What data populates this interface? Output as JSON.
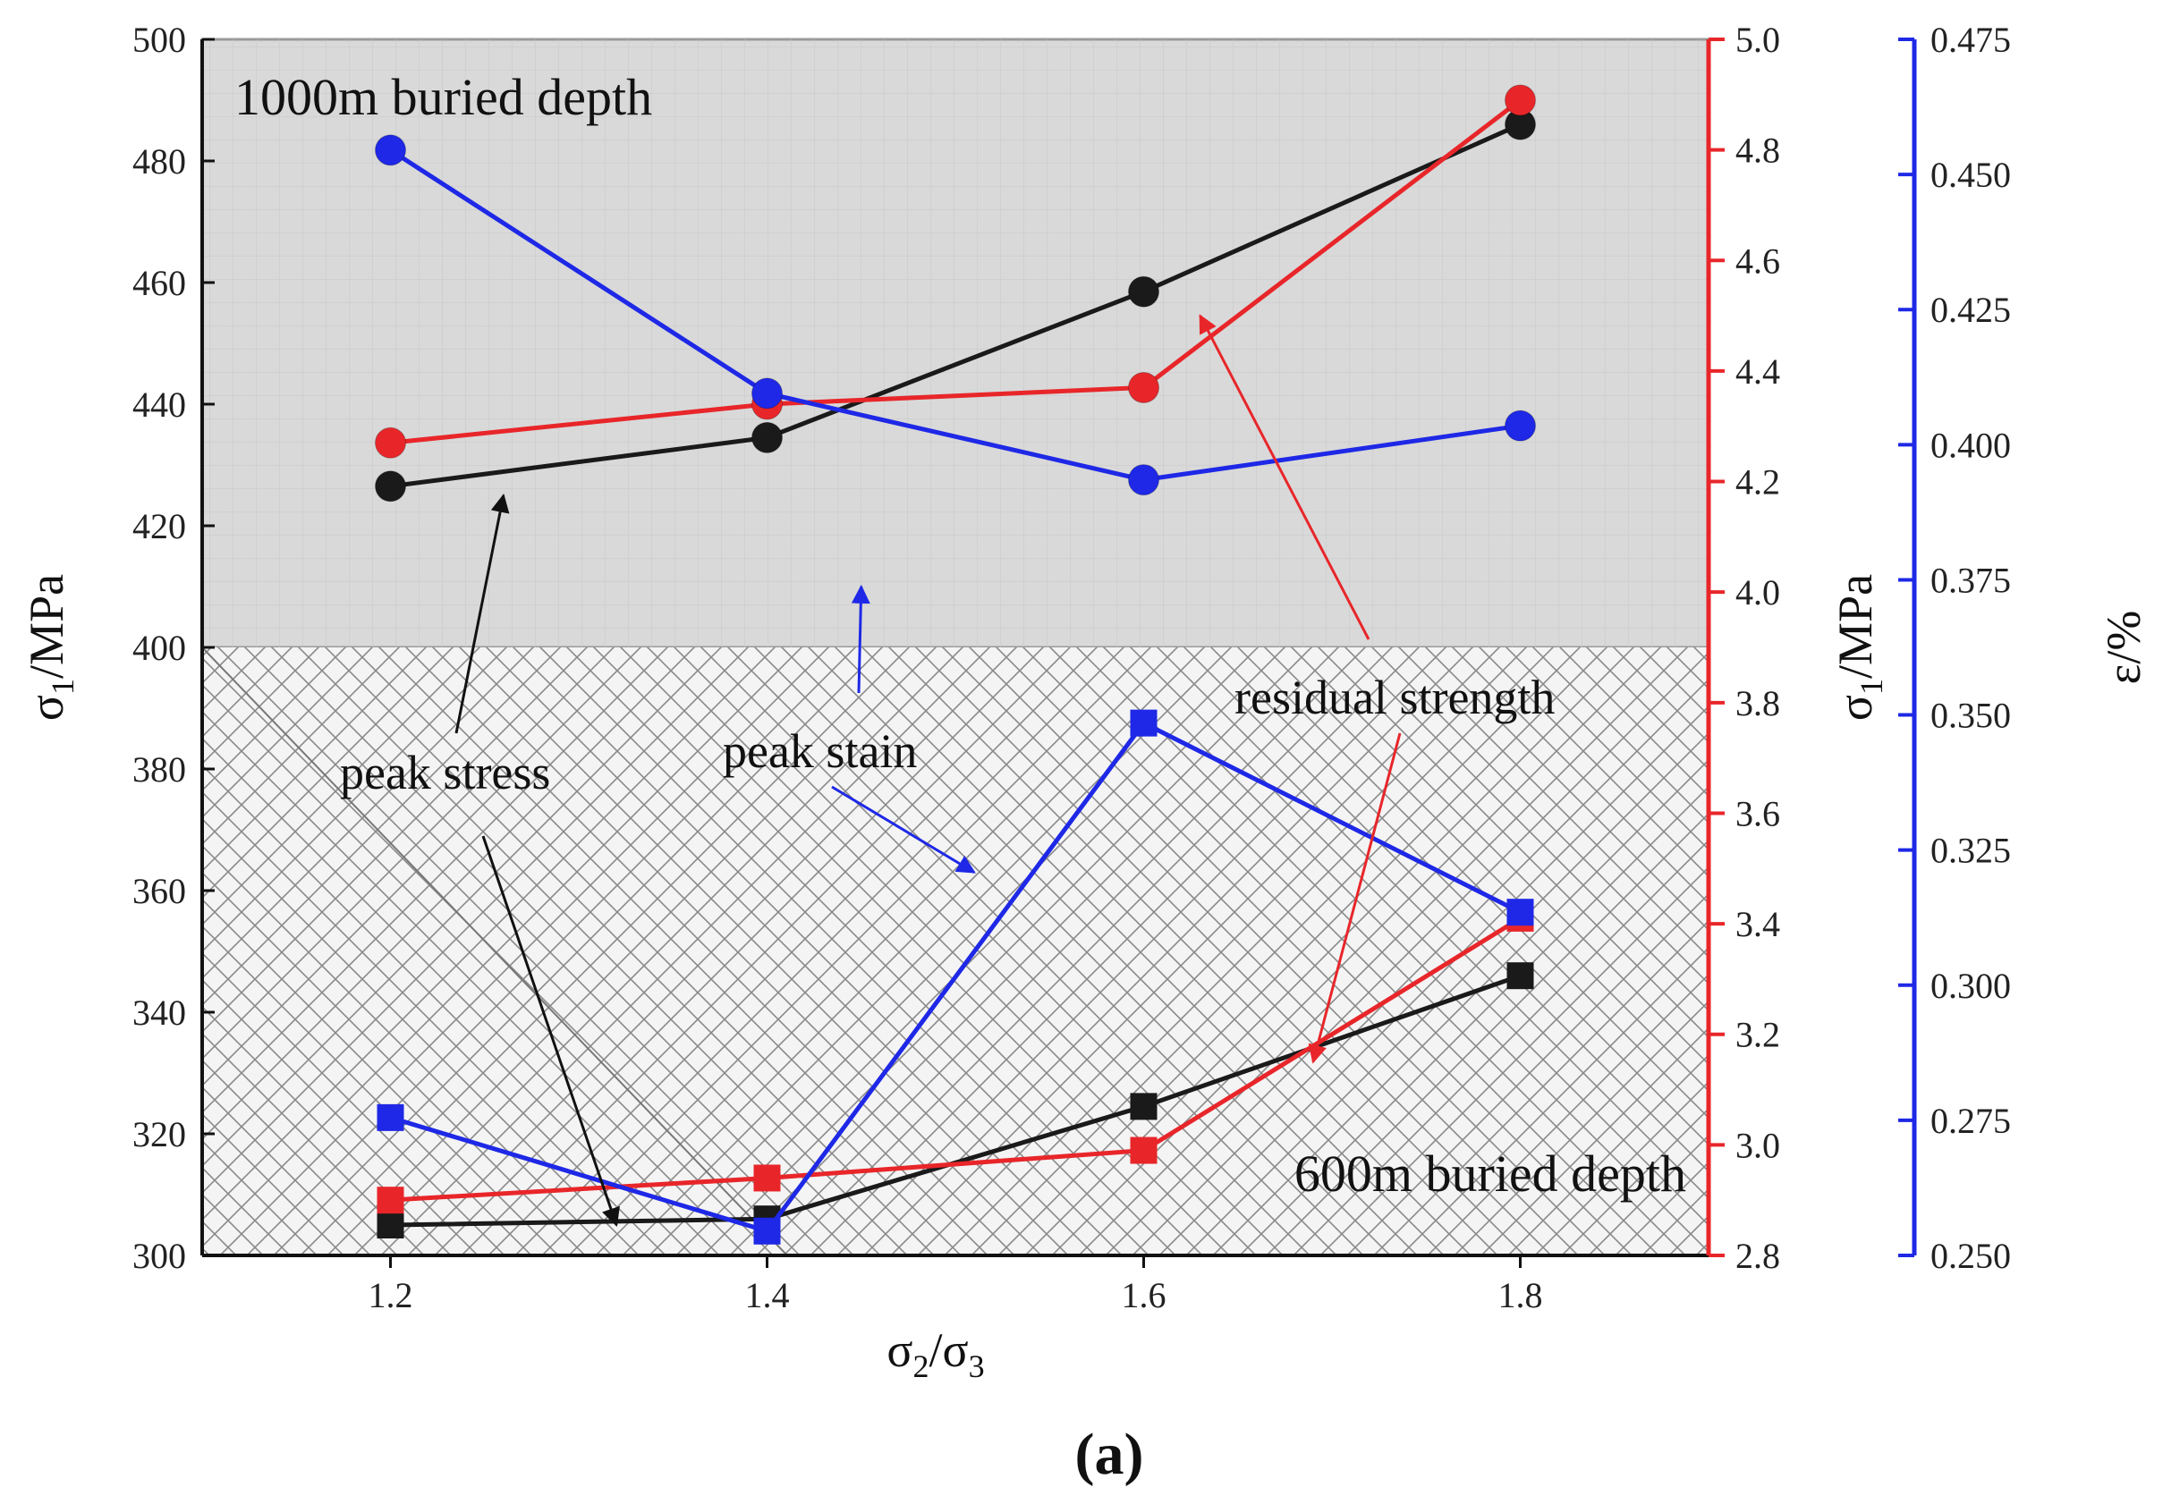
{
  "chart_data": {
    "type": "line",
    "panel_label": "(a)",
    "x": [
      1.2,
      1.4,
      1.6,
      1.8
    ],
    "xlim": [
      1.1,
      1.9
    ],
    "x_ticks": [
      "1.2",
      "1.4",
      "1.6",
      "1.8"
    ],
    "xlabel": "σ2/σ3",
    "ylabel_left": "σ1/MPa",
    "ylabel_right": "σ1/MPa",
    "ylabel_far_right": "ε/%",
    "y_left": {
      "lim": [
        300,
        500
      ],
      "ticks": [
        "300",
        "320",
        "340",
        "360",
        "380",
        "400",
        "420",
        "440",
        "460",
        "480",
        "500"
      ],
      "color": "#111111"
    },
    "y_right": {
      "lim": [
        2.8,
        5.0
      ],
      "ticks": [
        "2.8",
        "3.0",
        "3.2",
        "3.4",
        "3.6",
        "3.8",
        "4.0",
        "4.2",
        "4.4",
        "4.6",
        "4.8",
        "5.0"
      ],
      "color": "#e8262a"
    },
    "y_far_right": {
      "lim": [
        0.25,
        0.475
      ],
      "ticks": [
        "0.250",
        "0.275",
        "0.300",
        "0.325",
        "0.350",
        "0.375",
        "0.400",
        "0.425",
        "0.450",
        "0.475"
      ],
      "color": "#1e28e6"
    },
    "regions": {
      "upper": {
        "label": "1000m buried depth",
        "y_from": 400,
        "y_to": 500
      },
      "lower": {
        "label": "600m buried depth",
        "y_from": 300,
        "y_to": 400
      }
    },
    "series": [
      {
        "name": "peak stress (1000m)",
        "axis": "left",
        "marker": "circle",
        "color": "#1a1a1a",
        "values": [
          426.5,
          434.5,
          458.5,
          486.0
        ]
      },
      {
        "name": "residual strength (1000m)",
        "axis": "right",
        "marker": "circle",
        "color": "#e8262a",
        "values": [
          4.27,
          4.34,
          4.37,
          4.89
        ]
      },
      {
        "name": "peak strain (1000m)",
        "axis": "far_right",
        "marker": "circle",
        "color": "#1e28e6",
        "values": [
          0.4545,
          0.4095,
          0.3935,
          0.4035
        ]
      },
      {
        "name": "peak stress (600m)",
        "axis": "left",
        "marker": "square",
        "color": "#1a1a1a",
        "values": [
          305.0,
          306.0,
          324.5,
          346.0
        ]
      },
      {
        "name": "residual strength (600m)",
        "axis": "right",
        "marker": "square",
        "color": "#e8262a",
        "values": [
          2.9,
          2.94,
          2.99,
          3.41
        ]
      },
      {
        "name": "peak strain (600m)",
        "axis": "far_right",
        "marker": "square",
        "color": "#1e28e6",
        "values": [
          0.2755,
          0.2545,
          0.3485,
          0.3135
        ]
      }
    ],
    "annotations": [
      {
        "text": "peak stress",
        "color": "#111111",
        "targets": [
          [
            1.26,
            425
          ],
          [
            1.32,
            305
          ]
        ]
      },
      {
        "text": "peak stain",
        "color": "#1e28e6",
        "targets": [
          [
            1.45,
            410
          ],
          [
            1.51,
            363
          ]
        ]
      },
      {
        "text": "residual strength",
        "color": "#e8262a",
        "targets": [
          [
            1.63,
            4.5
          ],
          [
            1.69,
            3.15
          ]
        ]
      }
    ]
  }
}
